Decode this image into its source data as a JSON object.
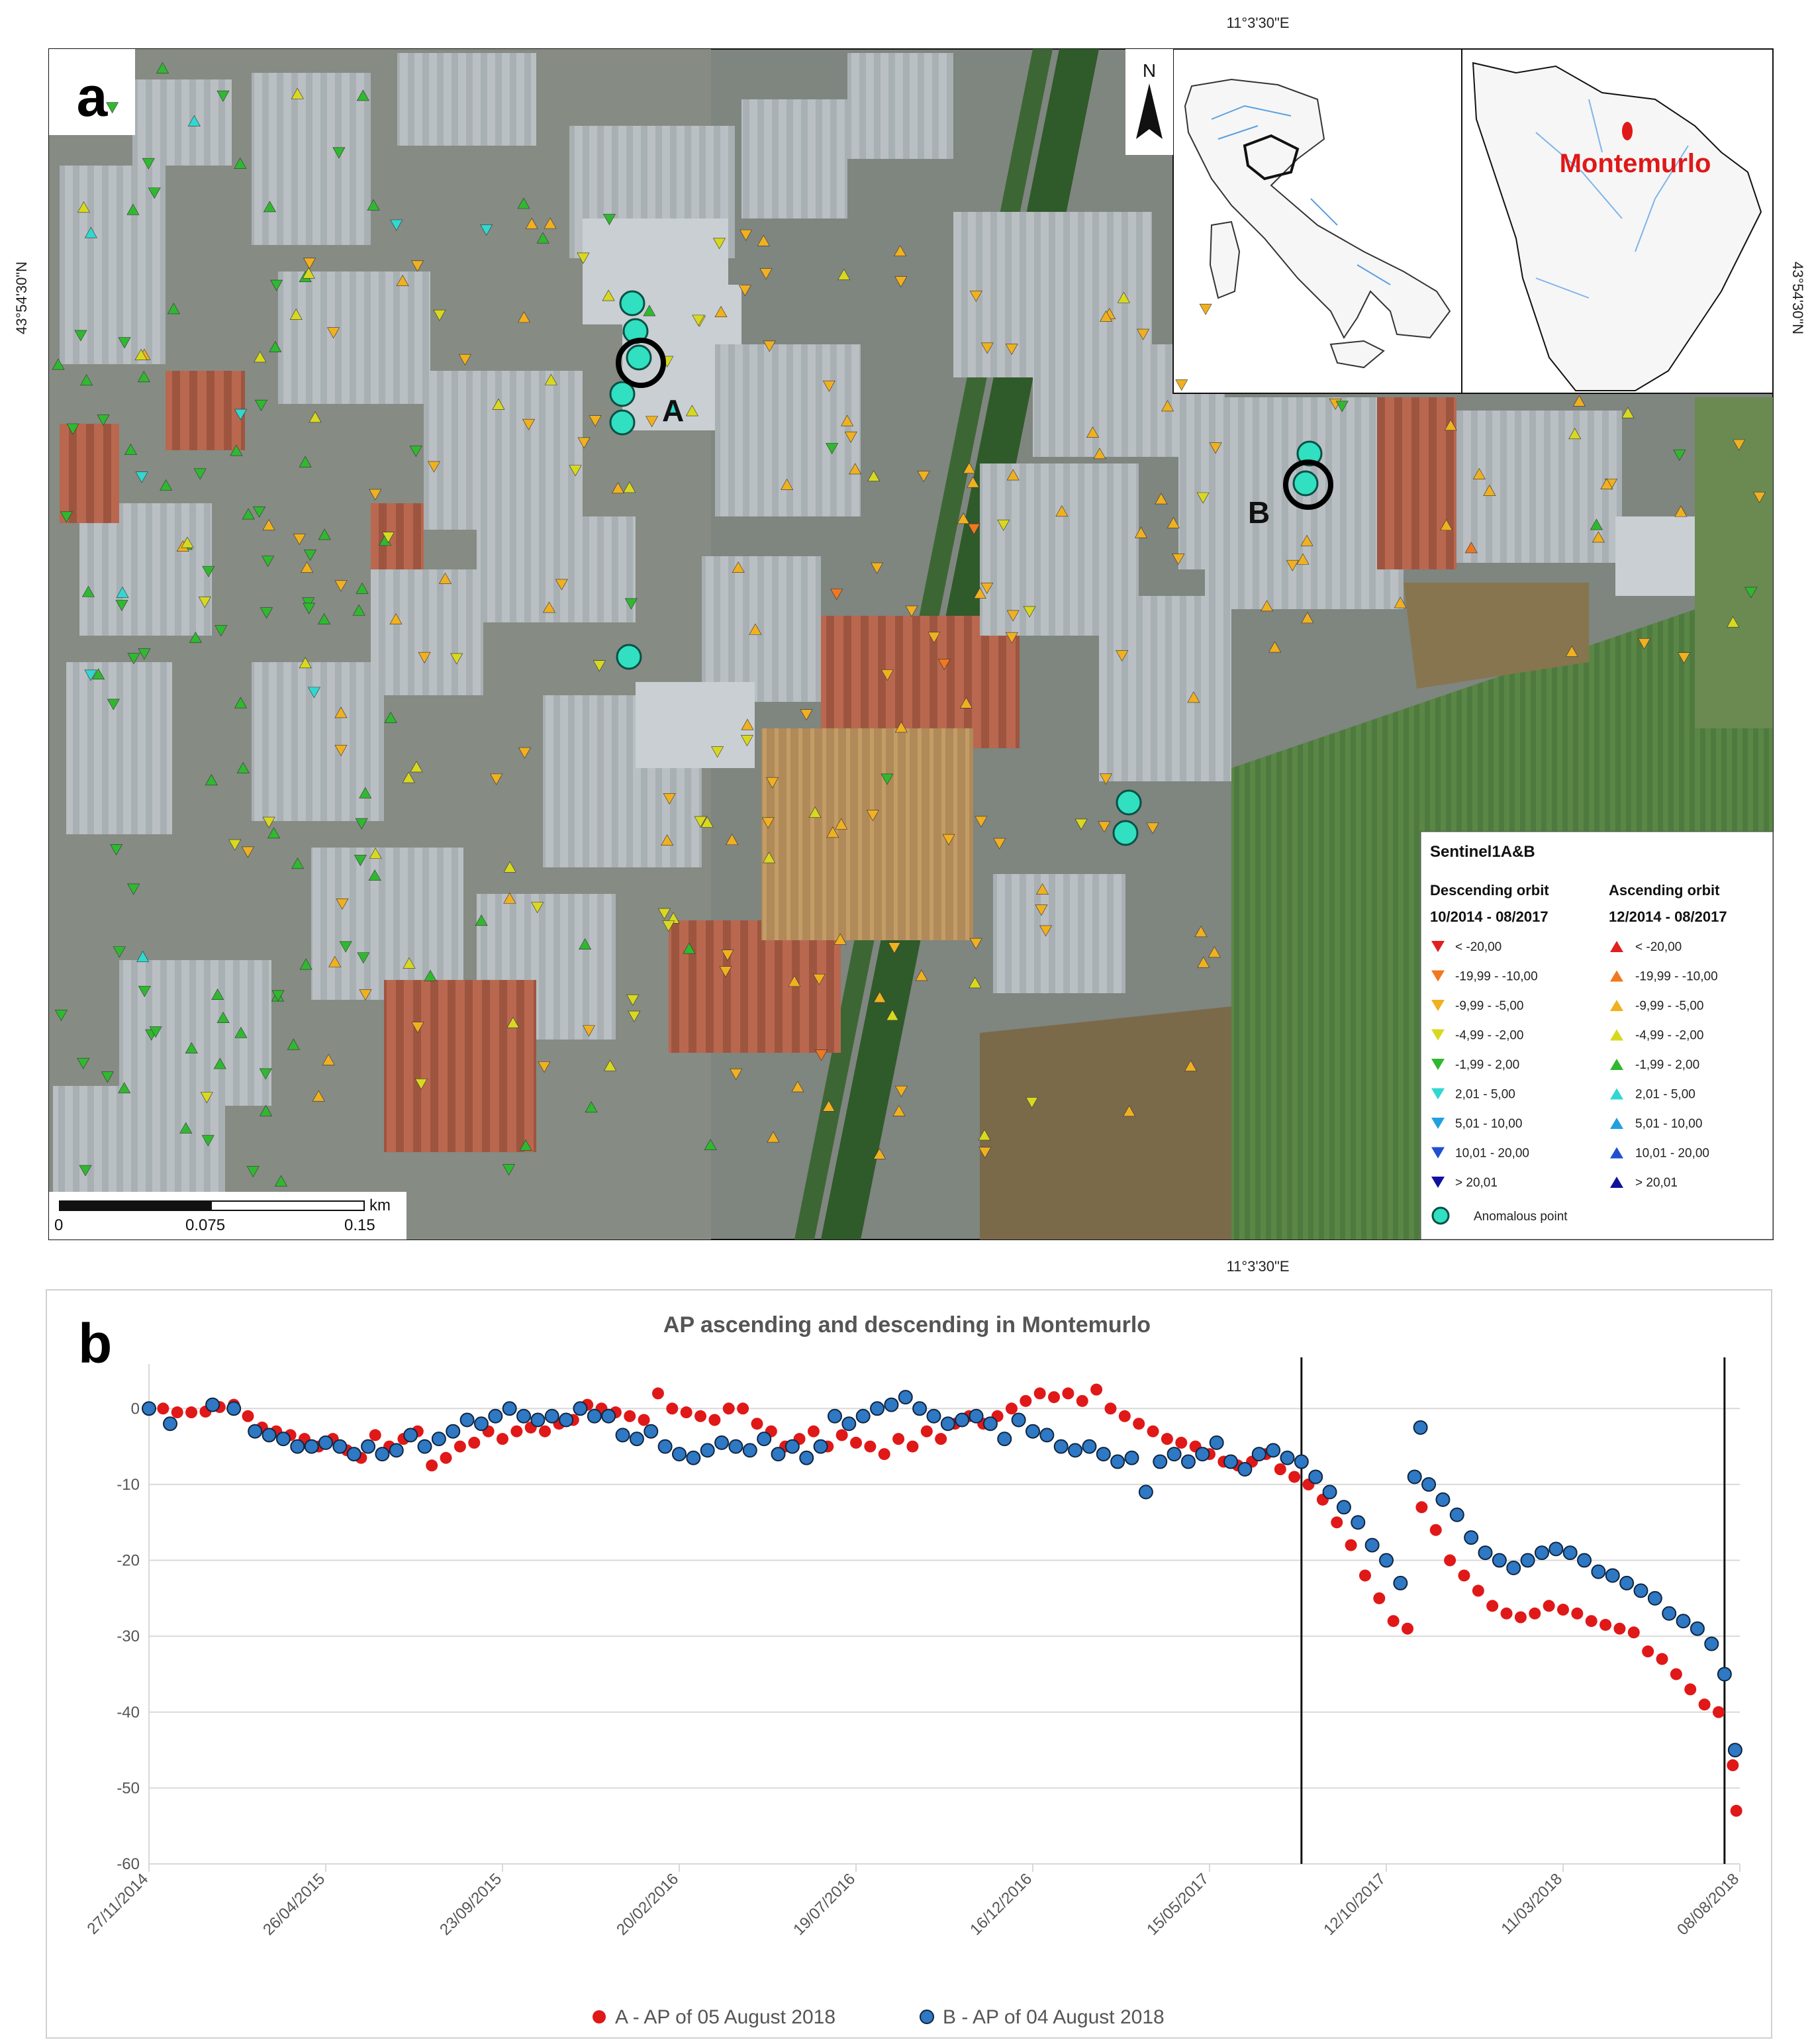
{
  "panel_a": {
    "label": "a",
    "coord_top": "11°3'30\"E",
    "coord_bottom": "11°3'30\"E",
    "coord_left": "43°54'30\"N",
    "coord_right": "43°54'30\"N",
    "north": "N",
    "inset_place": "Montemurlo",
    "point_a": "A",
    "point_b": "B",
    "scale": {
      "unit": "km",
      "ticks": [
        "0",
        "0.075",
        "0.15"
      ]
    },
    "legend": {
      "title": "Sentinel1A&B",
      "desc_head": "Descending orbit",
      "desc_period": "10/2014 - 08/2017",
      "asc_head": "Ascending orbit",
      "asc_period": "12/2014 - 08/2017",
      "classes": [
        "< -20,00",
        "-19,99 - -10,00",
        "-9,99 - -5,00",
        "-4,99 - -2,00",
        "-1,99 - 2,00",
        "2,01 - 5,00",
        "5,01 - 10,00",
        "10,01 - 20,00",
        "> 20,01"
      ],
      "class_colors": [
        "#e02020",
        "#f07820",
        "#f0b020",
        "#d8d820",
        "#30b830",
        "#30d8d0",
        "#20a0e0",
        "#2050d0",
        "#1010a0"
      ],
      "anomalous": "Anomalous point",
      "anomalous_color": "#30e0c0"
    }
  },
  "panel_b": {
    "label": "b",
    "chart_data": {
      "type": "scatter",
      "title": "AP ascending and descending in Montemurlo",
      "ylim": [
        -60,
        5
      ],
      "yticks": [
        0,
        -10,
        -20,
        -30,
        -40,
        -50,
        -60
      ],
      "xlim": [
        "2014-11-27",
        "2018-08-08"
      ],
      "xticks": [
        "27/11/2014",
        "26/04/2015",
        "23/09/2015",
        "20/02/2016",
        "19/07/2016",
        "16/12/2016",
        "15/05/2017",
        "12/10/2017",
        "11/03/2018",
        "08/08/2018"
      ],
      "vlines": [
        "2017-08-01",
        "2018-07-26"
      ],
      "series": [
        {
          "name": "A - AP of 05 August 2018",
          "color": "#e01818",
          "points": [
            [
              "2014-11-27",
              0
            ],
            [
              "2014-12-09",
              0
            ],
            [
              "2014-12-21",
              -0.5
            ],
            [
              "2015-01-02",
              -0.5
            ],
            [
              "2015-01-14",
              -0.4
            ],
            [
              "2015-01-26",
              0.2
            ],
            [
              "2015-02-07",
              0.5
            ],
            [
              "2015-02-19",
              -1
            ],
            [
              "2015-03-03",
              -2.5
            ],
            [
              "2015-03-15",
              -3
            ],
            [
              "2015-03-27",
              -3.5
            ],
            [
              "2015-04-08",
              -4
            ],
            [
              "2015-04-20",
              -5
            ],
            [
              "2015-05-02",
              -4
            ],
            [
              "2015-05-14",
              -5.5
            ],
            [
              "2015-05-26",
              -6.5
            ],
            [
              "2015-06-07",
              -3.5
            ],
            [
              "2015-06-19",
              -5
            ],
            [
              "2015-07-01",
              -4
            ],
            [
              "2015-07-13",
              -3
            ],
            [
              "2015-07-25",
              -7.5
            ],
            [
              "2015-08-06",
              -6.5
            ],
            [
              "2015-08-18",
              -5
            ],
            [
              "2015-08-30",
              -4.5
            ],
            [
              "2015-09-11",
              -3
            ],
            [
              "2015-09-23",
              -4
            ],
            [
              "2015-10-05",
              -3
            ],
            [
              "2015-10-17",
              -2.5
            ],
            [
              "2015-10-29",
              -3
            ],
            [
              "2015-11-10",
              -2
            ],
            [
              "2015-11-22",
              -1.5
            ],
            [
              "2015-12-04",
              0.5
            ],
            [
              "2015-12-16",
              0
            ],
            [
              "2015-12-28",
              -0.5
            ],
            [
              "2016-01-09",
              -1
            ],
            [
              "2016-01-21",
              -1.5
            ],
            [
              "2016-02-02",
              2
            ],
            [
              "2016-02-14",
              0
            ],
            [
              "2016-02-26",
              -0.5
            ],
            [
              "2016-03-09",
              -1
            ],
            [
              "2016-03-21",
              -1.5
            ],
            [
              "2016-04-02",
              0
            ],
            [
              "2016-04-14",
              0
            ],
            [
              "2016-04-26",
              -2
            ],
            [
              "2016-05-08",
              -3
            ],
            [
              "2016-05-20",
              -5
            ],
            [
              "2016-06-01",
              -4
            ],
            [
              "2016-06-13",
              -3
            ],
            [
              "2016-06-25",
              -5
            ],
            [
              "2016-07-07",
              -3.5
            ],
            [
              "2016-07-19",
              -4.5
            ],
            [
              "2016-07-31",
              -5
            ],
            [
              "2016-08-12",
              -6
            ],
            [
              "2016-08-24",
              -4
            ],
            [
              "2016-09-05",
              -5
            ],
            [
              "2016-09-17",
              -3
            ],
            [
              "2016-09-29",
              -4
            ],
            [
              "2016-10-11",
              -2
            ],
            [
              "2016-10-23",
              -1
            ],
            [
              "2016-11-04",
              -2
            ],
            [
              "2016-11-16",
              -1
            ],
            [
              "2016-11-28",
              0
            ],
            [
              "2016-12-10",
              1
            ],
            [
              "2016-12-22",
              2
            ],
            [
              "2017-01-03",
              1.5
            ],
            [
              "2017-01-15",
              2
            ],
            [
              "2017-01-27",
              1
            ],
            [
              "2017-02-08",
              2.5
            ],
            [
              "2017-02-20",
              0
            ],
            [
              "2017-03-04",
              -1
            ],
            [
              "2017-03-16",
              -2
            ],
            [
              "2017-03-28",
              -3
            ],
            [
              "2017-04-09",
              -4
            ],
            [
              "2017-04-21",
              -4.5
            ],
            [
              "2017-05-03",
              -5
            ],
            [
              "2017-05-15",
              -6
            ],
            [
              "2017-05-27",
              -7
            ],
            [
              "2017-06-08",
              -7.5
            ],
            [
              "2017-06-20",
              -7
            ],
            [
              "2017-07-02",
              -6
            ],
            [
              "2017-07-14",
              -8
            ],
            [
              "2017-07-26",
              -9
            ],
            [
              "2017-08-07",
              -10
            ],
            [
              "2017-08-19",
              -12
            ],
            [
              "2017-08-31",
              -15
            ],
            [
              "2017-09-12",
              -18
            ],
            [
              "2017-09-24",
              -22
            ],
            [
              "2017-10-06",
              -25
            ],
            [
              "2017-10-18",
              -28
            ],
            [
              "2017-10-30",
              -29
            ],
            [
              "2017-11-11",
              -13
            ],
            [
              "2017-11-23",
              -16
            ],
            [
              "2017-12-05",
              -20
            ],
            [
              "2017-12-17",
              -22
            ],
            [
              "2017-12-29",
              -24
            ],
            [
              "2018-01-10",
              -26
            ],
            [
              "2018-01-22",
              -27
            ],
            [
              "2018-02-03",
              -27.5
            ],
            [
              "2018-02-15",
              -27
            ],
            [
              "2018-02-27",
              -26
            ],
            [
              "2018-03-11",
              -26.5
            ],
            [
              "2018-03-23",
              -27
            ],
            [
              "2018-04-04",
              -28
            ],
            [
              "2018-04-16",
              -28.5
            ],
            [
              "2018-04-28",
              -29
            ],
            [
              "2018-05-10",
              -29.5
            ],
            [
              "2018-05-22",
              -32
            ],
            [
              "2018-06-03",
              -33
            ],
            [
              "2018-06-15",
              -35
            ],
            [
              "2018-06-27",
              -37
            ],
            [
              "2018-07-09",
              -39
            ],
            [
              "2018-07-21",
              -40
            ],
            [
              "2018-08-02",
              -47
            ],
            [
              "2018-08-05",
              -53
            ]
          ]
        },
        {
          "name": "B - AP of 04 August 2018",
          "color": "#2e78c4",
          "points": [
            [
              "2014-11-27",
              0
            ],
            [
              "2014-12-15",
              -2
            ],
            [
              "2015-01-20",
              0.5
            ],
            [
              "2015-02-07",
              0
            ],
            [
              "2015-02-25",
              -3
            ],
            [
              "2015-03-09",
              -3.5
            ],
            [
              "2015-03-21",
              -4
            ],
            [
              "2015-04-02",
              -5
            ],
            [
              "2015-04-14",
              -5
            ],
            [
              "2015-04-26",
              -4.5
            ],
            [
              "2015-05-08",
              -5
            ],
            [
              "2015-05-20",
              -6
            ],
            [
              "2015-06-01",
              -5
            ],
            [
              "2015-06-13",
              -6
            ],
            [
              "2015-06-25",
              -5.5
            ],
            [
              "2015-07-07",
              -3.5
            ],
            [
              "2015-07-19",
              -5
            ],
            [
              "2015-07-31",
              -4
            ],
            [
              "2015-08-12",
              -3
            ],
            [
              "2015-08-24",
              -1.5
            ],
            [
              "2015-09-05",
              -2
            ],
            [
              "2015-09-17",
              -1
            ],
            [
              "2015-09-29",
              0
            ],
            [
              "2015-10-11",
              -1
            ],
            [
              "2015-10-23",
              -1.5
            ],
            [
              "2015-11-04",
              -1
            ],
            [
              "2015-11-16",
              -1.5
            ],
            [
              "2015-11-28",
              0
            ],
            [
              "2015-12-10",
              -1
            ],
            [
              "2015-12-22",
              -1
            ],
            [
              "2016-01-03",
              -3.5
            ],
            [
              "2016-01-15",
              -4
            ],
            [
              "2016-01-27",
              -3
            ],
            [
              "2016-02-08",
              -5
            ],
            [
              "2016-02-20",
              -6
            ],
            [
              "2016-03-03",
              -6.5
            ],
            [
              "2016-03-15",
              -5.5
            ],
            [
              "2016-03-27",
              -4.5
            ],
            [
              "2016-04-08",
              -5
            ],
            [
              "2016-04-20",
              -5.5
            ],
            [
              "2016-05-02",
              -4
            ],
            [
              "2016-05-14",
              -6
            ],
            [
              "2016-05-26",
              -5
            ],
            [
              "2016-06-07",
              -6.5
            ],
            [
              "2016-06-19",
              -5
            ],
            [
              "2016-07-01",
              -1
            ],
            [
              "2016-07-13",
              -2
            ],
            [
              "2016-07-25",
              -1
            ],
            [
              "2016-08-06",
              0
            ],
            [
              "2016-08-18",
              0.5
            ],
            [
              "2016-08-30",
              1.5
            ],
            [
              "2016-09-11",
              0
            ],
            [
              "2016-09-23",
              -1
            ],
            [
              "2016-10-05",
              -2
            ],
            [
              "2016-10-17",
              -1.5
            ],
            [
              "2016-10-29",
              -1
            ],
            [
              "2016-11-10",
              -2
            ],
            [
              "2016-11-22",
              -4
            ],
            [
              "2016-12-04",
              -1.5
            ],
            [
              "2016-12-16",
              -3
            ],
            [
              "2016-12-28",
              -3.5
            ],
            [
              "2017-01-09",
              -5
            ],
            [
              "2017-01-21",
              -5.5
            ],
            [
              "2017-02-02",
              -5
            ],
            [
              "2017-02-14",
              -6
            ],
            [
              "2017-02-26",
              -7
            ],
            [
              "2017-03-10",
              -6.5
            ],
            [
              "2017-03-22",
              -11
            ],
            [
              "2017-04-03",
              -7
            ],
            [
              "2017-04-15",
              -6
            ],
            [
              "2017-04-27",
              -7
            ],
            [
              "2017-05-09",
              -6
            ],
            [
              "2017-05-21",
              -4.5
            ],
            [
              "2017-06-02",
              -7
            ],
            [
              "2017-06-14",
              -8
            ],
            [
              "2017-06-26",
              -6
            ],
            [
              "2017-07-08",
              -5.5
            ],
            [
              "2017-07-20",
              -6.5
            ],
            [
              "2017-08-01",
              -7
            ],
            [
              "2017-08-13",
              -9
            ],
            [
              "2017-08-25",
              -11
            ],
            [
              "2017-09-06",
              -13
            ],
            [
              "2017-09-18",
              -15
            ],
            [
              "2017-09-30",
              -18
            ],
            [
              "2017-10-12",
              -20
            ],
            [
              "2017-10-24",
              -23
            ],
            [
              "2017-11-05",
              -9
            ],
            [
              "2017-11-10",
              -2.5
            ],
            [
              "2017-11-17",
              -10
            ],
            [
              "2017-11-29",
              -12
            ],
            [
              "2017-12-11",
              -14
            ],
            [
              "2017-12-23",
              -17
            ],
            [
              "2018-01-04",
              -19
            ],
            [
              "2018-01-16",
              -20
            ],
            [
              "2018-01-28",
              -21
            ],
            [
              "2018-02-09",
              -20
            ],
            [
              "2018-02-21",
              -19
            ],
            [
              "2018-03-05",
              -18.5
            ],
            [
              "2018-03-17",
              -19
            ],
            [
              "2018-03-29",
              -20
            ],
            [
              "2018-04-10",
              -21.5
            ],
            [
              "2018-04-22",
              -22
            ],
            [
              "2018-05-04",
              -23
            ],
            [
              "2018-05-16",
              -24
            ],
            [
              "2018-05-28",
              -25
            ],
            [
              "2018-06-09",
              -27
            ],
            [
              "2018-06-21",
              -28
            ],
            [
              "2018-07-03",
              -29
            ],
            [
              "2018-07-15",
              -31
            ],
            [
              "2018-07-26",
              -35
            ],
            [
              "2018-08-04",
              -45
            ]
          ]
        }
      ]
    }
  }
}
